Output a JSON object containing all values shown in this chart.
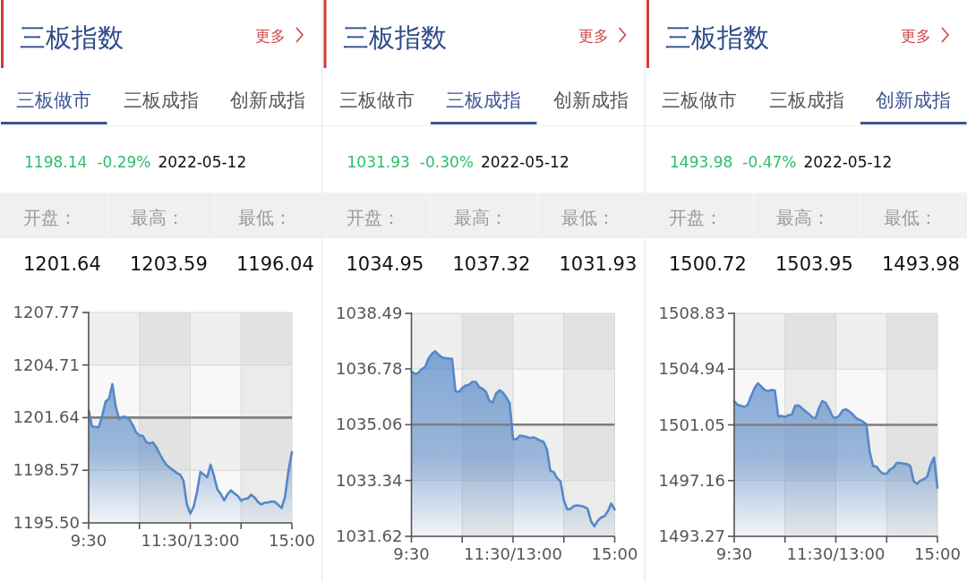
{
  "chart_data": [
    {
      "type": "area",
      "title": "三板指数",
      "annotations": [
        "更多",
        "三板做市",
        "三板成指",
        "创新成指",
        "1198.14",
        "-0.29%",
        "2022-05-12",
        "开盘：",
        "最高：",
        "最低：",
        "1201.64",
        "1203.59",
        "1196.04"
      ],
      "categories": [
        "9:30",
        null,
        null,
        null,
        null,
        null,
        null,
        null,
        null,
        null,
        null,
        null,
        null,
        null,
        null,
        null,
        null,
        null,
        null,
        null,
        null,
        null,
        null,
        null,
        null,
        null,
        null,
        null,
        null,
        null,
        "11:30/13:00",
        null,
        null,
        null,
        null,
        null,
        null,
        null,
        null,
        null,
        null,
        null,
        null,
        null,
        null,
        null,
        null,
        null,
        null,
        null,
        null,
        null,
        null,
        null,
        null,
        null,
        null,
        null,
        null,
        null,
        "15:00"
      ],
      "values": [
        1202.07,
        1201.13,
        1201.1,
        1201.08,
        1201.76,
        1202.57,
        1202.74,
        1203.59,
        1202.3,
        1201.55,
        1201.68,
        1201.68,
        1201.54,
        1201.22,
        1200.78,
        1200.6,
        1200.58,
        1200.22,
        1200.13,
        1200.19,
        1199.91,
        1199.52,
        1199.16,
        1198.88,
        1198.71,
        1198.56,
        1198.42,
        1198.31,
        1197.96,
        1196.57,
        1196.04,
        1196.44,
        1197.31,
        1198.48,
        1198.32,
        1198.16,
        1198.9,
        1198.25,
        1197.45,
        1197.19,
        1196.81,
        1197.17,
        1197.4,
        1197.22,
        1197.08,
        1196.8,
        1196.9,
        1196.93,
        1197.15,
        1196.98,
        1196.72,
        1196.58,
        1196.68,
        1196.69,
        1196.75,
        1196.72,
        1196.54,
        1196.37,
        1197.05,
        1198.56,
        1199.63
      ],
      "color": "#5588c8",
      "ylim": [
        1195.5,
        1207.77
      ],
      "yticks": [
        {
          "value": 1195.5,
          "label": "1195.50"
        },
        1198.57,
        1201.64,
        1204.71,
        1207.77
      ],
      "ref_lines": [
        {
          "axis": "y",
          "value": 1201.64,
          "color": "#7f7f7f"
        }
      ],
      "grid": true
    },
    {
      "type": "area",
      "title": "三板指数",
      "annotations": [
        "更多",
        "三板做市",
        "三板成指",
        "创新成指",
        "1031.93",
        "-0.30%",
        "2022-05-12",
        "开盘：",
        "最高：",
        "最低：",
        "1034.95",
        "1037.32",
        "1031.93"
      ],
      "categories": [
        "9:30",
        null,
        null,
        null,
        null,
        null,
        null,
        null,
        null,
        null,
        null,
        null,
        null,
        null,
        null,
        null,
        null,
        null,
        null,
        null,
        null,
        null,
        null,
        null,
        null,
        null,
        null,
        null,
        null,
        null,
        "11:30/13:00",
        null,
        null,
        null,
        null,
        null,
        null,
        null,
        null,
        null,
        null,
        null,
        null,
        null,
        null,
        null,
        null,
        null,
        null,
        null,
        null,
        null,
        null,
        null,
        null,
        null,
        null,
        null,
        null,
        null,
        "15:00"
      ],
      "values": [
        1036.7,
        1036.63,
        1036.65,
        1036.77,
        1036.83,
        1037.09,
        1037.24,
        1037.32,
        1037.22,
        1037.14,
        1037.11,
        1037.1,
        1037.09,
        1036.09,
        1036.07,
        1036.19,
        1036.27,
        1036.29,
        1036.38,
        1036.38,
        1036.22,
        1036.17,
        1036.07,
        1035.8,
        1035.74,
        1036.02,
        1036.12,
        1036.05,
        1035.91,
        1035.72,
        1034.62,
        1034.61,
        1034.72,
        1034.71,
        1034.68,
        1034.65,
        1034.67,
        1034.63,
        1034.57,
        1034.53,
        1034.31,
        1033.64,
        1033.6,
        1033.41,
        1033.32,
        1032.73,
        1032.45,
        1032.47,
        1032.56,
        1032.57,
        1032.56,
        1032.53,
        1032.47,
        1032.09,
        1031.93,
        1032.1,
        1032.2,
        1032.24,
        1032.39,
        1032.63,
        1032.45
      ],
      "color": "#5588c8",
      "ylim": [
        1031.62,
        1038.49
      ],
      "yticks": [
        1031.62,
        1033.34,
        1035.06,
        1036.78,
        1038.49
      ],
      "ref_lines": [
        {
          "axis": "y",
          "value": 1035.06,
          "color": "#7f7f7f"
        }
      ],
      "grid": true
    },
    {
      "type": "area",
      "title": "三板指数",
      "annotations": [
        "更多",
        "三板做市",
        "三板成指",
        "创新成指",
        "1493.98",
        "-0.47%",
        "2022-05-12",
        "开盘：",
        "最高：",
        "最低：",
        "1500.72",
        "1503.95",
        "1493.98"
      ],
      "categories": [
        "9:30",
        null,
        null,
        null,
        null,
        null,
        null,
        null,
        null,
        null,
        null,
        null,
        null,
        null,
        null,
        null,
        null,
        null,
        null,
        null,
        null,
        null,
        null,
        null,
        null,
        null,
        null,
        null,
        null,
        null,
        "11:30/13:00",
        null,
        null,
        null,
        null,
        null,
        null,
        null,
        null,
        null,
        null,
        null,
        null,
        null,
        null,
        null,
        null,
        null,
        null,
        null,
        null,
        null,
        null,
        null,
        null,
        null,
        null,
        null,
        null,
        null,
        "15:00"
      ],
      "values": [
        1502.69,
        1502.45,
        1502.38,
        1502.3,
        1502.45,
        1503.06,
        1503.61,
        1503.95,
        1503.72,
        1503.49,
        1503.4,
        1503.49,
        1503.46,
        1501.65,
        1501.67,
        1501.6,
        1501.72,
        1501.76,
        1502.39,
        1502.41,
        1502.21,
        1502.0,
        1501.82,
        1501.59,
        1501.51,
        1502.21,
        1502.72,
        1502.59,
        1502.17,
        1501.64,
        1501.52,
        1501.69,
        1502.06,
        1502.13,
        1501.99,
        1501.78,
        1501.52,
        1501.4,
        1501.27,
        1501.09,
        1499.15,
        1498.18,
        1498.14,
        1497.81,
        1497.64,
        1497.64,
        1497.94,
        1498.07,
        1498.39,
        1498.39,
        1498.35,
        1498.32,
        1498.17,
        1497.11,
        1496.93,
        1497.17,
        1497.26,
        1497.45,
        1498.27,
        1498.77,
        1496.66
      ],
      "color": "#5588c8",
      "ylim": [
        1493.27,
        1508.83
      ],
      "yticks": [
        1493.27,
        1497.16,
        1501.05,
        1504.94,
        1508.83
      ],
      "ref_lines": [
        {
          "axis": "y",
          "value": 1501.05,
          "color": "#7f7f7f"
        }
      ],
      "grid": true
    }
  ]
}
